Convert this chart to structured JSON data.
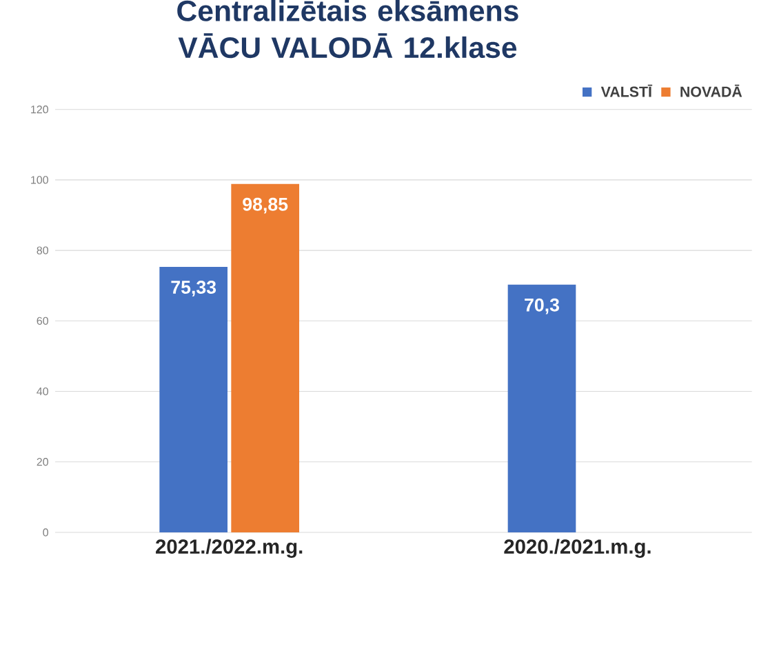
{
  "chart_data": {
    "type": "bar",
    "title": "Centralizētais eksāmens VĀCU VALODĀ  12.klase",
    "categories": [
      "2021./2022.m.g.",
      "2020./2021.m.g."
    ],
    "series": [
      {
        "name": "VALSTĪ",
        "color": "#4472c4",
        "values": [
          75.33,
          70.3
        ],
        "value_labels": [
          "75,33",
          "70,3"
        ]
      },
      {
        "name": "NOVADĀ",
        "color": "#ed7d31",
        "values": [
          98.85,
          null
        ],
        "value_labels": [
          "98,85",
          null
        ]
      }
    ],
    "ylim": [
      0,
      120
    ],
    "yticks": [
      0,
      20,
      40,
      60,
      80,
      100,
      120
    ],
    "grid": "y",
    "legend": "top right"
  }
}
